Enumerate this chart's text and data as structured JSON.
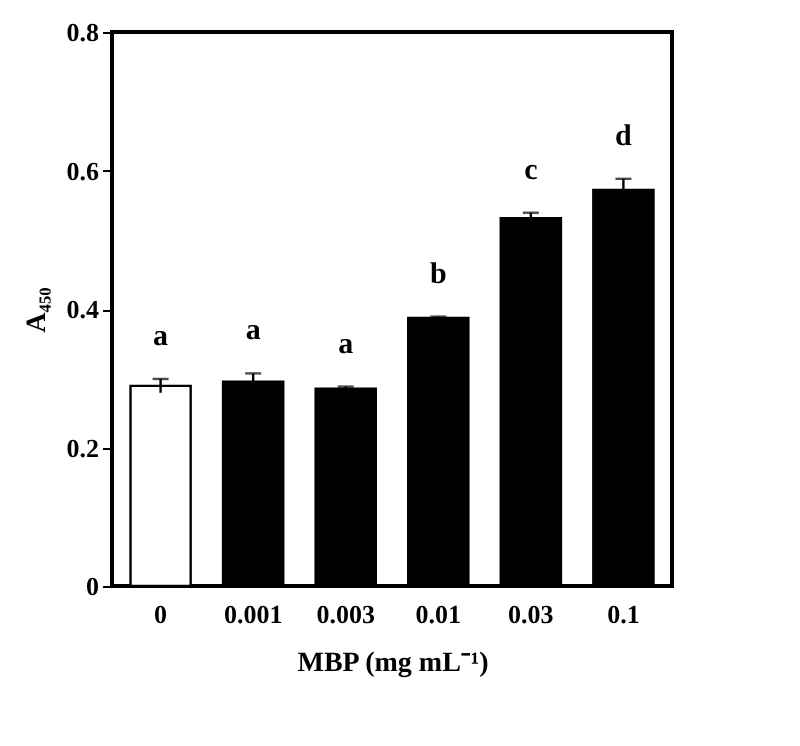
{
  "chart_data": {
    "type": "bar",
    "xlabel": "MBP (mg mL⁻¹)",
    "ylabel": "A₄₅₀",
    "categories": [
      "0",
      "0.001",
      "0.003",
      "0.01",
      "0.03",
      "0.1"
    ],
    "values": [
      0.289,
      0.295,
      0.285,
      0.387,
      0.531,
      0.572
    ],
    "errors": [
      0.01,
      0.012,
      0.003,
      0.002,
      0.008,
      0.016
    ],
    "colors": [
      "#ffffff",
      "#000000",
      "#000000",
      "#000000",
      "#000000",
      "#000000"
    ],
    "ylim": [
      0,
      0.8
    ],
    "yticks": [
      0,
      0.2,
      0.4,
      0.6,
      0.8
    ],
    "grid": false,
    "legend": false,
    "annotations": [
      "a",
      "a",
      "a",
      "b",
      "c",
      "d"
    ]
  }
}
